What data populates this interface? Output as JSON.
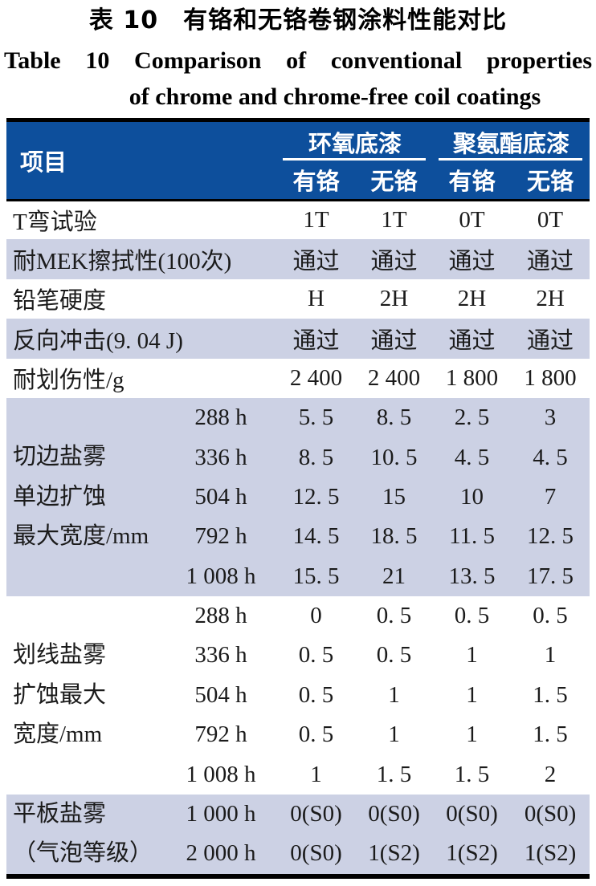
{
  "title": {
    "zh": "表 10　有铬和无铬卷钢涂料性能对比",
    "en_line1": "Table 10  Comparison of conventional properties",
    "en_line2": "of chrome and chrome-free coil coatings"
  },
  "table": {
    "header": {
      "item_label": "项目",
      "groups": [
        {
          "label": "环氧底漆",
          "subs": [
            "有铬",
            "无铬"
          ]
        },
        {
          "label": "聚氨酯底漆",
          "subs": [
            "有铬",
            "无铬"
          ]
        }
      ]
    },
    "simple_rows": [
      {
        "label": "T弯试验",
        "values": [
          "1T",
          "1T",
          "0T",
          "0T"
        ]
      },
      {
        "label": "耐MEK擦拭性(100次)",
        "values": [
          "通过",
          "通过",
          "通过",
          "通过"
        ]
      },
      {
        "label": "铅笔硬度",
        "values": [
          "H",
          "2H",
          "2H",
          "2H"
        ]
      },
      {
        "label": "反向冲击(9. 04 J)",
        "values": [
          "通过",
          "通过",
          "通过",
          "通过"
        ]
      },
      {
        "label": "耐划伤性/g",
        "values": [
          "2 400",
          "2 400",
          "1 800",
          "1 800"
        ]
      }
    ],
    "blocks": [
      {
        "label_lines": [
          "切边盐雾",
          "单边扩蚀",
          "最大宽度/mm"
        ],
        "rows": [
          {
            "time": "288 h",
            "values": [
              "5. 5",
              "8. 5",
              "2. 5",
              "3"
            ]
          },
          {
            "time": "336 h",
            "values": [
              "8. 5",
              "10. 5",
              "4. 5",
              "4. 5"
            ]
          },
          {
            "time": "504 h",
            "values": [
              "12. 5",
              "15",
              "10",
              "7"
            ]
          },
          {
            "time": "792 h",
            "values": [
              "14. 5",
              "18. 5",
              "11. 5",
              "12. 5"
            ]
          },
          {
            "time": "1 008 h",
            "values": [
              "15. 5",
              "21",
              "13. 5",
              "17. 5"
            ]
          }
        ]
      },
      {
        "label_lines": [
          "划线盐雾",
          "扩蚀最大",
          "宽度/mm"
        ],
        "rows": [
          {
            "time": "288 h",
            "values": [
              "0",
              "0. 5",
              "0. 5",
              "0. 5"
            ]
          },
          {
            "time": "336 h",
            "values": [
              "0. 5",
              "0. 5",
              "1",
              "1"
            ]
          },
          {
            "time": "504 h",
            "values": [
              "0. 5",
              "1",
              "1",
              "1. 5"
            ]
          },
          {
            "time": "792 h",
            "values": [
              "0. 5",
              "1",
              "1",
              "1. 5"
            ]
          },
          {
            "time": "1 008 h",
            "values": [
              "1",
              "1. 5",
              "1. 5",
              "2"
            ]
          }
        ]
      },
      {
        "label_lines": [
          "平板盐雾",
          "（气泡等级）"
        ],
        "rows": [
          {
            "time": "1 000 h",
            "values": [
              "0(S0)",
              "0(S0)",
              "0(S0)",
              "0(S0)"
            ]
          },
          {
            "time": "2 000 h",
            "values": [
              "0(S0)",
              "1(S2)",
              "1(S2)",
              "1(S2)"
            ]
          }
        ]
      }
    ]
  },
  "colors": {
    "header_bg": "#0D4F9C",
    "band_bg": "#CCD1E4",
    "border_color": "#000000",
    "header_text": "#FFFFFF",
    "body_text": "#1B1B1B"
  }
}
